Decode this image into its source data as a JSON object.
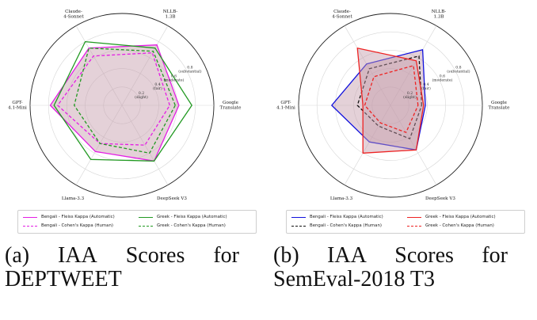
{
  "chart_data": [
    {
      "type": "radar",
      "axes": [
        "Google Translate",
        "NLLB-1.3B",
        "Claude-4-Sonnet",
        "GPT-4.1-Mini",
        "Llama-3.3",
        "DeepSeek V3"
      ],
      "axis_labels": [
        [
          "Google",
          "Translate"
        ],
        [
          "NLLB-",
          "1.3B"
        ],
        [
          "Claude-",
          "4-Sonnet"
        ],
        [
          "GPT-",
          "4.1-Mini"
        ],
        [
          "Llama-3.3"
        ],
        [
          "DeepSeek V3"
        ]
      ],
      "rmax": 1.0,
      "rings": [
        {
          "value": 0.2,
          "lines": [
            "0.2",
            "(slight)"
          ]
        },
        {
          "value": 0.4,
          "lines": [
            "0.4",
            "(fair)"
          ]
        },
        {
          "value": 0.6,
          "lines": [
            "0.6",
            "(moderate)"
          ]
        },
        {
          "value": 0.8,
          "lines": [
            "0.8",
            "(substantial)"
          ]
        }
      ],
      "series": [
        {
          "name": "Bengali - Fleiss Kappa (Automatic)",
          "color": "#e41ee4",
          "dashed": false,
          "fill": true,
          "values": [
            0.62,
            0.76,
            0.72,
            0.78,
            0.58,
            0.7
          ]
        },
        {
          "name": "Bengali - Cohen's Kappa (Human)",
          "color": "#e41ee4",
          "dashed": true,
          "fill": false,
          "values": [
            0.52,
            0.66,
            0.62,
            0.7,
            0.48,
            0.5
          ]
        },
        {
          "name": "Greek - Fleiss Kappa (Automatic)",
          "color": "#229922",
          "dashed": false,
          "fill": false,
          "values": [
            0.76,
            0.72,
            0.8,
            0.74,
            0.68,
            0.7
          ]
        },
        {
          "name": "Greek - Cohen's Kappa (Human)",
          "color": "#229922",
          "dashed": true,
          "fill": false,
          "values": [
            0.58,
            0.68,
            0.72,
            0.52,
            0.48,
            0.6
          ]
        }
      ],
      "fill_color": "#c49aa8",
      "caption_lead": [
        "(a)",
        "IAA",
        "Scores",
        "for"
      ],
      "caption_rest": "DEPTWEET"
    },
    {
      "type": "radar",
      "axes": [
        "Google Translate",
        "NLLB-1.3B",
        "Claude-4-Sonnet",
        "GPT-4.1-Mini",
        "Llama-3.3",
        "DeepSeek V3"
      ],
      "axis_labels": [
        [
          "Google",
          "Translate"
        ],
        [
          "NLLB-",
          "1.3B"
        ],
        [
          "Claude-",
          "4-Sonnet"
        ],
        [
          "GPT-",
          "4.1-Mini"
        ],
        [
          "Llama-3.3"
        ],
        [
          "DeepSeek V3"
        ]
      ],
      "rmax": 1.0,
      "rings": [
        {
          "value": 0.2,
          "lines": [
            "0.2",
            "(slight)"
          ]
        },
        {
          "value": 0.4,
          "lines": [
            "0.4",
            "(fair)"
          ]
        },
        {
          "value": 0.6,
          "lines": [
            "0.6",
            "(moderate)"
          ]
        },
        {
          "value": 0.8,
          "lines": [
            "0.8",
            "(substantial)"
          ]
        }
      ],
      "series": [
        {
          "name": "Bengali - Fleiss Kappa (Automatic)",
          "color": "#1111dd",
          "dashed": false,
          "fill": true,
          "values": [
            0.38,
            0.7,
            0.52,
            0.64,
            0.46,
            0.56
          ]
        },
        {
          "name": "Bengali - Cohen's Kappa (Human)",
          "color": "#111111",
          "dashed": true,
          "fill": false,
          "values": [
            0.34,
            0.62,
            0.46,
            0.36,
            0.26,
            0.42
          ]
        },
        {
          "name": "Greek - Fleiss Kappa (Automatic)",
          "color": "#ee2222",
          "dashed": false,
          "fill": true,
          "values": [
            0.36,
            0.56,
            0.72,
            0.3,
            0.6,
            0.56
          ]
        },
        {
          "name": "Greek - Cohen's Kappa (Human)",
          "color": "#ee2222",
          "dashed": true,
          "fill": false,
          "values": [
            0.3,
            0.5,
            0.36,
            0.28,
            0.22,
            0.34
          ]
        }
      ],
      "fill_color": "#c49aa8",
      "caption_lead": [
        "(b)",
        "IAA",
        "Scores",
        "for"
      ],
      "caption_rest": "SemEval-2018 T3"
    }
  ]
}
